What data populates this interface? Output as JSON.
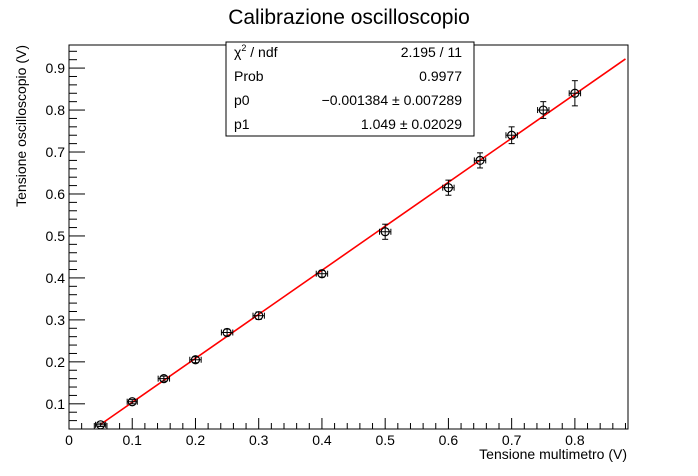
{
  "chart_data": {
    "type": "scatter",
    "title": "Calibrazione oscilloscopio",
    "xlabel": "Tensione multimetro (V)",
    "ylabel": "Tensione oscilloscopio (V)",
    "xlim": [
      0,
      0.884
    ],
    "ylim": [
      0.04,
      0.955
    ],
    "xticks": [
      0,
      0.1,
      0.2,
      0.3,
      0.4,
      0.5,
      0.6,
      0.7,
      0.8
    ],
    "xtick_labels": [
      "0",
      "0.1",
      "0.2",
      "0.3",
      "0.4",
      "0.5",
      "0.6",
      "0.7",
      "0.8"
    ],
    "yticks": [
      0.1,
      0.2,
      0.3,
      0.4,
      0.5,
      0.6,
      0.7,
      0.8,
      0.9
    ],
    "ytick_labels": [
      "0.1",
      "0.2",
      "0.3",
      "0.4",
      "0.5",
      "0.6",
      "0.7",
      "0.8",
      "0.9"
    ],
    "grid": false,
    "points": [
      {
        "x": 0.05,
        "y": 0.05,
        "xerr": 0.008,
        "yerr": 0.004
      },
      {
        "x": 0.1,
        "y": 0.105,
        "xerr": 0.008,
        "yerr": 0.005
      },
      {
        "x": 0.15,
        "y": 0.16,
        "xerr": 0.009,
        "yerr": 0.006
      },
      {
        "x": 0.2,
        "y": 0.205,
        "xerr": 0.009,
        "yerr": 0.007
      },
      {
        "x": 0.25,
        "y": 0.27,
        "xerr": 0.009,
        "yerr": 0.008
      },
      {
        "x": 0.3,
        "y": 0.31,
        "xerr": 0.009,
        "yerr": 0.009
      },
      {
        "x": 0.4,
        "y": 0.41,
        "xerr": 0.009,
        "yerr": 0.008
      },
      {
        "x": 0.5,
        "y": 0.51,
        "xerr": 0.009,
        "yerr": 0.018
      },
      {
        "x": 0.6,
        "y": 0.615,
        "xerr": 0.009,
        "yerr": 0.018
      },
      {
        "x": 0.65,
        "y": 0.68,
        "xerr": 0.009,
        "yerr": 0.018
      },
      {
        "x": 0.7,
        "y": 0.74,
        "xerr": 0.009,
        "yerr": 0.02
      },
      {
        "x": 0.75,
        "y": 0.8,
        "xerr": 0.009,
        "yerr": 0.02
      },
      {
        "x": 0.8,
        "y": 0.84,
        "xerr": 0.009,
        "yerr": 0.03
      }
    ],
    "fit": {
      "p0": -0.001384,
      "p1": 1.049,
      "x_range": [
        0.05,
        0.88
      ],
      "color": "#ff0000"
    },
    "marker_color": "#000000",
    "stats_box": {
      "rows": [
        {
          "label_base": "χ",
          "label_sup": "2",
          "label_rest": " / ndf",
          "value": "2.195 / 11"
        },
        {
          "label_base": "Prob",
          "label_sup": "",
          "label_rest": "",
          "value": "0.9977"
        },
        {
          "label_base": "p0",
          "label_sup": "",
          "label_rest": "",
          "value": "−0.001384 ± 0.007289"
        },
        {
          "label_base": "p1",
          "label_sup": "",
          "label_rest": "",
          "value": "1.049 ± 0.02029"
        }
      ]
    }
  }
}
